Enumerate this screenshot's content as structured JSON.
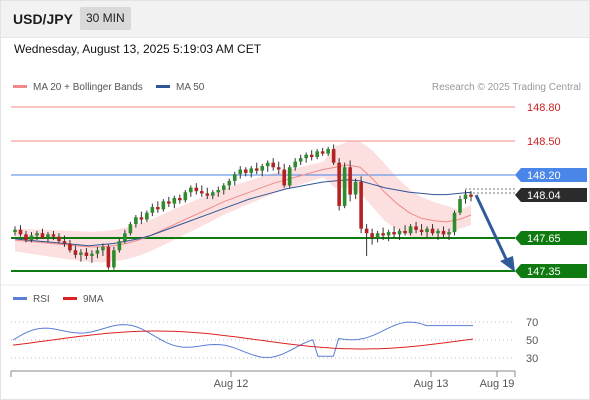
{
  "header": {
    "symbol": "USD/JPY",
    "interval": "30 MIN"
  },
  "datetime": "Wednesday, August 13, 2025 5:19:03 AM CET",
  "legend": {
    "items": [
      {
        "label": "MA 20 + Bollinger Bands",
        "color": "#f08a8a"
      },
      {
        "label": "MA 50",
        "color": "#2f5597"
      }
    ],
    "watermark": "Research © 2025 Trading Central"
  },
  "levels": [
    {
      "value": "148.80",
      "kind": "resistance",
      "color": "#cc2222"
    },
    {
      "value": "148.50",
      "kind": "resistance",
      "color": "#cc2222"
    },
    {
      "value": "148.20",
      "kind": "pivot",
      "color": "#4a86e8"
    },
    {
      "value": "147.65",
      "kind": "support",
      "color": "#0f7a0f"
    },
    {
      "value": "147.35",
      "kind": "support",
      "color": "#0f7a0f"
    }
  ],
  "current_price": "148.04",
  "x_axis_labels": [
    "Aug 12",
    "Aug 13",
    "Aug 19"
  ],
  "rsi": {
    "legend": [
      {
        "label": "RSI",
        "color": "#5b7fd6"
      },
      {
        "label": "9MA",
        "color": "#dd2222"
      }
    ],
    "levels": [
      "70",
      "50",
      "30"
    ]
  },
  "chart_data": {
    "type": "candlestick",
    "y_range": [
      147.3,
      148.9
    ],
    "bull_color": "#2e8b2e",
    "bear_color": "#b22222",
    "candles": [
      [
        147.73,
        147.78,
        147.7,
        147.75
      ],
      [
        147.75,
        147.79,
        147.69,
        147.71
      ],
      [
        147.71,
        147.74,
        147.64,
        147.66
      ],
      [
        147.66,
        147.73,
        147.64,
        147.7
      ],
      [
        147.7,
        147.74,
        147.66,
        147.72
      ],
      [
        147.72,
        147.76,
        147.67,
        147.68
      ],
      [
        147.68,
        147.73,
        147.64,
        147.71
      ],
      [
        147.71,
        147.74,
        147.66,
        147.69
      ],
      [
        147.69,
        147.72,
        147.63,
        147.65
      ],
      [
        147.65,
        147.7,
        147.6,
        147.63
      ],
      [
        147.63,
        147.66,
        147.55,
        147.57
      ],
      [
        147.57,
        147.61,
        147.5,
        147.53
      ],
      [
        147.53,
        147.58,
        147.47,
        147.55
      ],
      [
        147.55,
        147.59,
        147.49,
        147.52
      ],
      [
        147.52,
        147.57,
        147.46,
        147.54
      ],
      [
        147.54,
        147.6,
        147.5,
        147.57
      ],
      [
        147.57,
        147.63,
        147.52,
        147.6
      ],
      [
        147.6,
        147.62,
        147.4,
        147.42
      ],
      [
        147.42,
        147.6,
        147.4,
        147.57
      ],
      [
        147.57,
        147.67,
        147.55,
        147.65
      ],
      [
        147.65,
        147.75,
        147.63,
        147.72
      ],
      [
        147.72,
        147.82,
        147.7,
        147.8
      ],
      [
        147.8,
        147.88,
        147.77,
        147.86
      ],
      [
        147.86,
        147.91,
        147.8,
        147.84
      ],
      [
        147.84,
        147.92,
        147.82,
        147.9
      ],
      [
        147.9,
        147.98,
        147.87,
        147.95
      ],
      [
        147.95,
        148.0,
        147.9,
        147.93
      ],
      [
        147.93,
        148.02,
        147.91,
        148.0
      ],
      [
        148.0,
        148.04,
        147.95,
        147.98
      ],
      [
        147.98,
        148.05,
        147.94,
        148.03
      ],
      [
        148.03,
        148.06,
        147.98,
        148.01
      ],
      [
        148.01,
        148.1,
        147.99,
        148.08
      ],
      [
        148.08,
        148.14,
        148.04,
        148.12
      ],
      [
        148.12,
        148.16,
        148.06,
        148.09
      ],
      [
        148.09,
        148.14,
        148.04,
        148.07
      ],
      [
        148.07,
        148.12,
        148.02,
        148.05
      ],
      [
        148.05,
        148.1,
        148.02,
        148.08
      ],
      [
        148.08,
        148.13,
        148.04,
        148.1
      ],
      [
        148.1,
        148.16,
        148.06,
        148.14
      ],
      [
        148.14,
        148.2,
        148.1,
        148.18
      ],
      [
        148.18,
        148.26,
        148.14,
        148.24
      ],
      [
        148.24,
        148.31,
        148.2,
        148.28
      ],
      [
        148.28,
        148.3,
        148.22,
        148.25
      ],
      [
        148.25,
        148.31,
        148.21,
        148.29
      ],
      [
        148.29,
        148.34,
        148.24,
        148.27
      ],
      [
        148.27,
        148.33,
        148.22,
        148.31
      ],
      [
        148.31,
        148.36,
        148.26,
        148.34
      ],
      [
        148.34,
        148.38,
        148.27,
        148.3
      ],
      [
        148.3,
        148.35,
        148.24,
        148.28
      ],
      [
        148.28,
        148.33,
        148.12,
        148.14
      ],
      [
        148.14,
        148.32,
        148.12,
        148.3
      ],
      [
        148.3,
        148.38,
        148.27,
        148.35
      ],
      [
        148.35,
        148.41,
        148.32,
        148.38
      ],
      [
        148.38,
        148.43,
        148.34,
        148.41
      ],
      [
        148.41,
        148.45,
        148.36,
        148.39
      ],
      [
        148.39,
        148.46,
        148.37,
        148.44
      ],
      [
        148.44,
        148.47,
        148.4,
        148.42
      ],
      [
        148.42,
        148.48,
        148.4,
        148.46
      ],
      [
        148.46,
        148.5,
        148.32,
        148.34
      ],
      [
        148.34,
        148.38,
        147.92,
        147.96
      ],
      [
        147.96,
        148.34,
        147.94,
        148.3
      ],
      [
        148.3,
        148.36,
        148.0,
        148.06
      ],
      [
        148.06,
        148.2,
        148.02,
        148.17
      ],
      [
        148.17,
        148.22,
        147.72,
        147.76
      ],
      [
        147.76,
        147.8,
        147.52,
        147.72
      ],
      [
        147.72,
        147.76,
        147.62,
        147.68
      ],
      [
        147.68,
        147.74,
        147.64,
        147.72
      ],
      [
        147.72,
        147.77,
        147.66,
        147.7
      ],
      [
        147.7,
        147.75,
        147.65,
        147.73
      ],
      [
        147.73,
        147.78,
        147.68,
        147.71
      ],
      [
        147.71,
        147.76,
        147.66,
        147.74
      ],
      [
        147.74,
        147.79,
        147.7,
        147.72
      ],
      [
        147.72,
        147.8,
        147.7,
        147.78
      ],
      [
        147.78,
        147.82,
        147.72,
        147.75
      ],
      [
        147.75,
        147.8,
        147.7,
        147.73
      ],
      [
        147.73,
        147.78,
        147.68,
        147.76
      ],
      [
        147.76,
        147.8,
        147.7,
        147.72
      ],
      [
        147.72,
        147.76,
        147.66,
        147.74
      ],
      [
        147.74,
        147.78,
        147.68,
        147.71
      ],
      [
        147.71,
        147.76,
        147.66,
        147.73
      ],
      [
        147.73,
        147.92,
        147.7,
        147.9
      ],
      [
        147.9,
        148.05,
        147.88,
        148.02
      ],
      [
        148.02,
        148.1,
        147.98,
        148.06
      ],
      [
        148.06,
        148.09,
        148.0,
        148.04
      ]
    ],
    "ma20": [
      147.66,
      147.65,
      147.64,
      147.63,
      147.62,
      147.61,
      147.6,
      147.6,
      147.61,
      147.63,
      147.66,
      147.7,
      147.75,
      147.8,
      147.85,
      147.9,
      147.95,
      148.0,
      148.04,
      148.08,
      148.12,
      148.16,
      148.19,
      148.22,
      148.25,
      148.28,
      148.3,
      148.32,
      148.3,
      148.2,
      148.08,
      147.98,
      147.9,
      147.85,
      147.83,
      147.82,
      147.84,
      147.88
    ],
    "ma50": [
      147.67,
      147.66,
      147.65,
      147.64,
      147.63,
      147.62,
      147.61,
      147.62,
      147.63,
      147.65,
      147.67,
      147.7,
      147.74,
      147.78,
      147.82,
      147.86,
      147.9,
      147.94,
      147.98,
      148.02,
      148.05,
      148.08,
      148.11,
      148.13,
      148.15,
      148.17,
      148.18,
      148.19,
      148.18,
      148.15,
      148.12,
      148.1,
      148.08,
      148.07,
      148.06,
      148.06,
      148.07,
      148.08
    ]
  }
}
